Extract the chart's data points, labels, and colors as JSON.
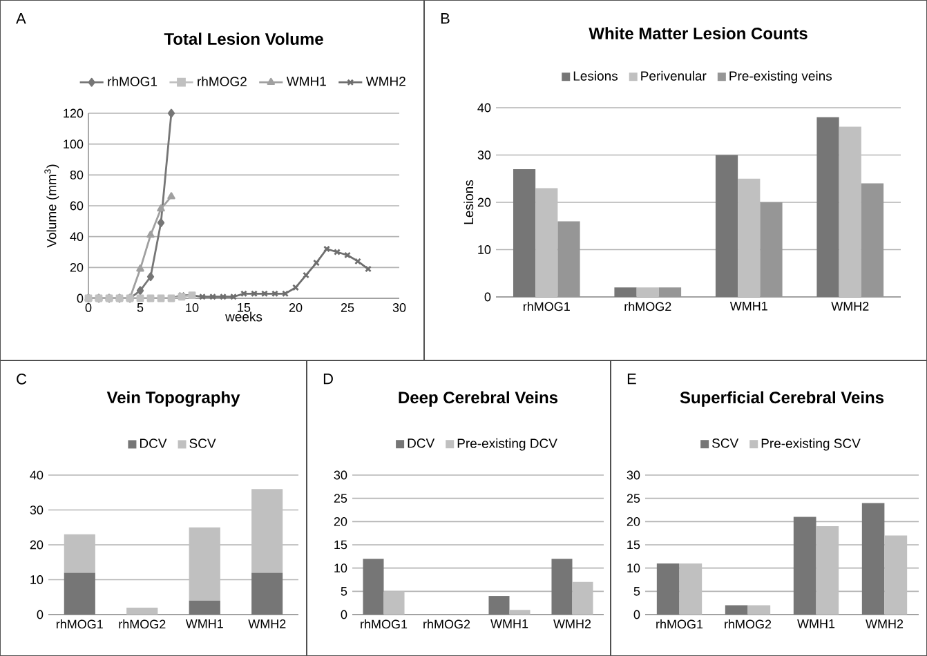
{
  "chart_data": [
    {
      "type": "line",
      "title": "Total Lesion Volume",
      "xlabel": "weeks",
      "ylabel": "Volume (mm$^{3}$)",
      "annotations": [
        "A"
      ],
      "legend": "top",
      "grid": "y",
      "xlim": [
        0,
        30
      ],
      "xticks": [
        0,
        5,
        10,
        15,
        20,
        25,
        30
      ],
      "ylim": [
        0,
        120
      ],
      "yticks": [
        0,
        20,
        40,
        60,
        80,
        100,
        120
      ],
      "series": [
        {
          "name": "rhMOG1",
          "color": "#767676",
          "marker": "diamond",
          "x": [
            0,
            1,
            2,
            3,
            4,
            5,
            6,
            7,
            8
          ],
          "values": [
            0,
            0,
            0,
            0,
            0,
            5,
            14,
            49,
            120
          ]
        },
        {
          "name": "rhMOG2",
          "color": "#c0c0c0",
          "marker": "square",
          "x": [
            0,
            1,
            2,
            3,
            4,
            5,
            6,
            7,
            8,
            9,
            10
          ],
          "values": [
            0,
            0,
            0,
            0,
            0,
            0,
            0,
            0,
            0,
            1,
            2
          ]
        },
        {
          "name": "WMH1",
          "color": "#a0a0a0",
          "marker": "triangle",
          "x": [
            0,
            1,
            2,
            3,
            4,
            5,
            6,
            7,
            8
          ],
          "values": [
            0,
            0,
            0,
            0,
            0,
            19,
            41,
            58,
            66
          ]
        },
        {
          "name": "WMH2",
          "color": "#6e6e6e",
          "marker": "cross",
          "x": [
            0,
            1,
            2,
            3,
            4,
            5,
            6,
            7,
            8,
            9,
            10,
            11,
            12,
            13,
            14,
            15,
            16,
            17,
            18,
            19,
            20,
            21,
            22,
            23,
            24,
            25,
            26,
            27
          ],
          "values": [
            0,
            0,
            0,
            0,
            0,
            0,
            0,
            0,
            0,
            2,
            2,
            1,
            1,
            1,
            1,
            3,
            3,
            3,
            3,
            3,
            7,
            15,
            23,
            32,
            30,
            28,
            24,
            19
          ]
        }
      ]
    },
    {
      "type": "bar",
      "title": "White Matter Lesion Counts",
      "ylabel": "Lesions",
      "annotations": [
        "B"
      ],
      "legend": "top",
      "grid": "y",
      "categories": [
        "rhMOG1",
        "rhMOG2",
        "WMH1",
        "WMH2"
      ],
      "ylim": [
        0,
        40
      ],
      "yticks": [
        0,
        10,
        20,
        30,
        40
      ],
      "series": [
        {
          "name": "Lesions",
          "color": "#767676",
          "values": [
            27,
            2,
            30,
            38
          ]
        },
        {
          "name": "Perivenular",
          "color": "#c0c0c0",
          "values": [
            23,
            2,
            25,
            36
          ]
        },
        {
          "name": "Pre-existing veins",
          "color": "#969696",
          "values": [
            16,
            2,
            20,
            24
          ]
        }
      ]
    },
    {
      "type": "bar",
      "stacked": true,
      "title": "Vein Topography",
      "annotations": [
        "C"
      ],
      "legend": "top",
      "grid": "y",
      "categories": [
        "rhMOG1",
        "rhMOG2",
        "WMH1",
        "WMH2"
      ],
      "ylim": [
        0,
        40
      ],
      "yticks": [
        0,
        10,
        20,
        30,
        40
      ],
      "series": [
        {
          "name": "DCV",
          "color": "#767676",
          "values": [
            12,
            0,
            4,
            12
          ]
        },
        {
          "name": "SCV",
          "color": "#c0c0c0",
          "values": [
            11,
            2,
            21,
            24
          ]
        }
      ]
    },
    {
      "type": "bar",
      "title": "Deep Cerebral Veins",
      "annotations": [
        "D"
      ],
      "legend": "top",
      "grid": "y",
      "categories": [
        "rhMOG1",
        "rhMOG2",
        "WMH1",
        "WMH2"
      ],
      "ylim": [
        0,
        30
      ],
      "yticks": [
        0,
        5,
        10,
        15,
        20,
        25,
        30
      ],
      "series": [
        {
          "name": "DCV",
          "color": "#767676",
          "values": [
            12,
            0,
            4,
            12
          ]
        },
        {
          "name": "Pre-existing DCV",
          "color": "#c0c0c0",
          "values": [
            5,
            0,
            1,
            7
          ]
        }
      ]
    },
    {
      "type": "bar",
      "title": "Superficial Cerebral Veins",
      "annotations": [
        "E"
      ],
      "legend": "top",
      "grid": "y",
      "categories": [
        "rhMOG1",
        "rhMOG2",
        "WMH1",
        "WMH2"
      ],
      "ylim": [
        0,
        30
      ],
      "yticks": [
        0,
        5,
        10,
        15,
        20,
        25,
        30
      ],
      "series": [
        {
          "name": "SCV",
          "color": "#767676",
          "values": [
            11,
            2,
            21,
            24
          ]
        },
        {
          "name": "Pre-existing SCV",
          "color": "#c0c0c0",
          "values": [
            11,
            2,
            19,
            17
          ]
        }
      ]
    }
  ]
}
